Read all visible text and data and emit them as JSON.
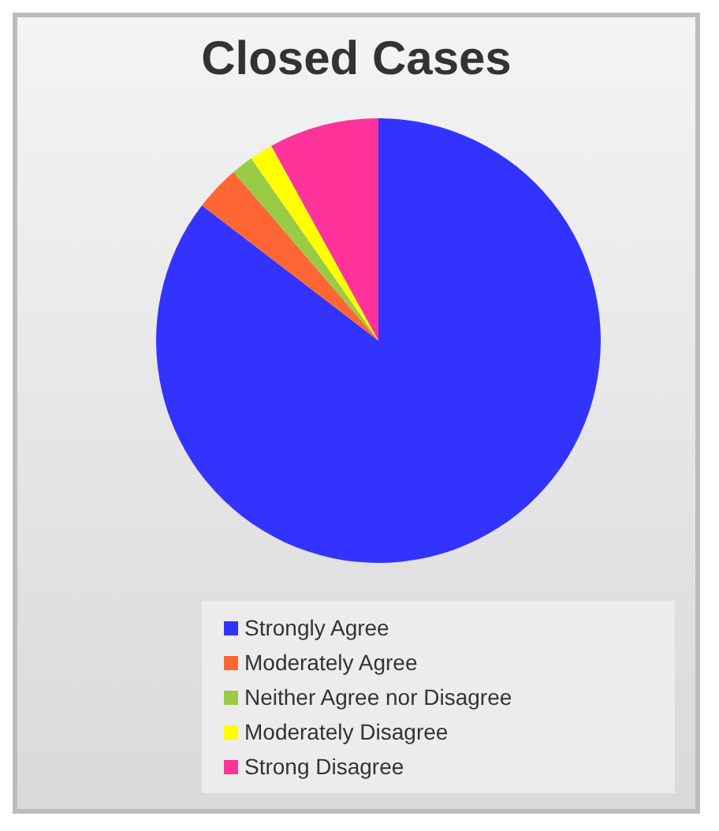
{
  "chart_data": {
    "type": "pie",
    "title": "Closed Cases",
    "categories": [
      "Strongly Agree",
      "Moderately Agree",
      "Neither Agree nor Disagree",
      "Moderately Disagree",
      "Strong Disagree"
    ],
    "values": [
      85.4,
      3.3,
      1.6,
      1.7,
      8.0
    ],
    "colors": [
      "#3333ff",
      "#ff6633",
      "#99cc44",
      "#ffff00",
      "#ff3399"
    ],
    "legend": "bottom"
  }
}
